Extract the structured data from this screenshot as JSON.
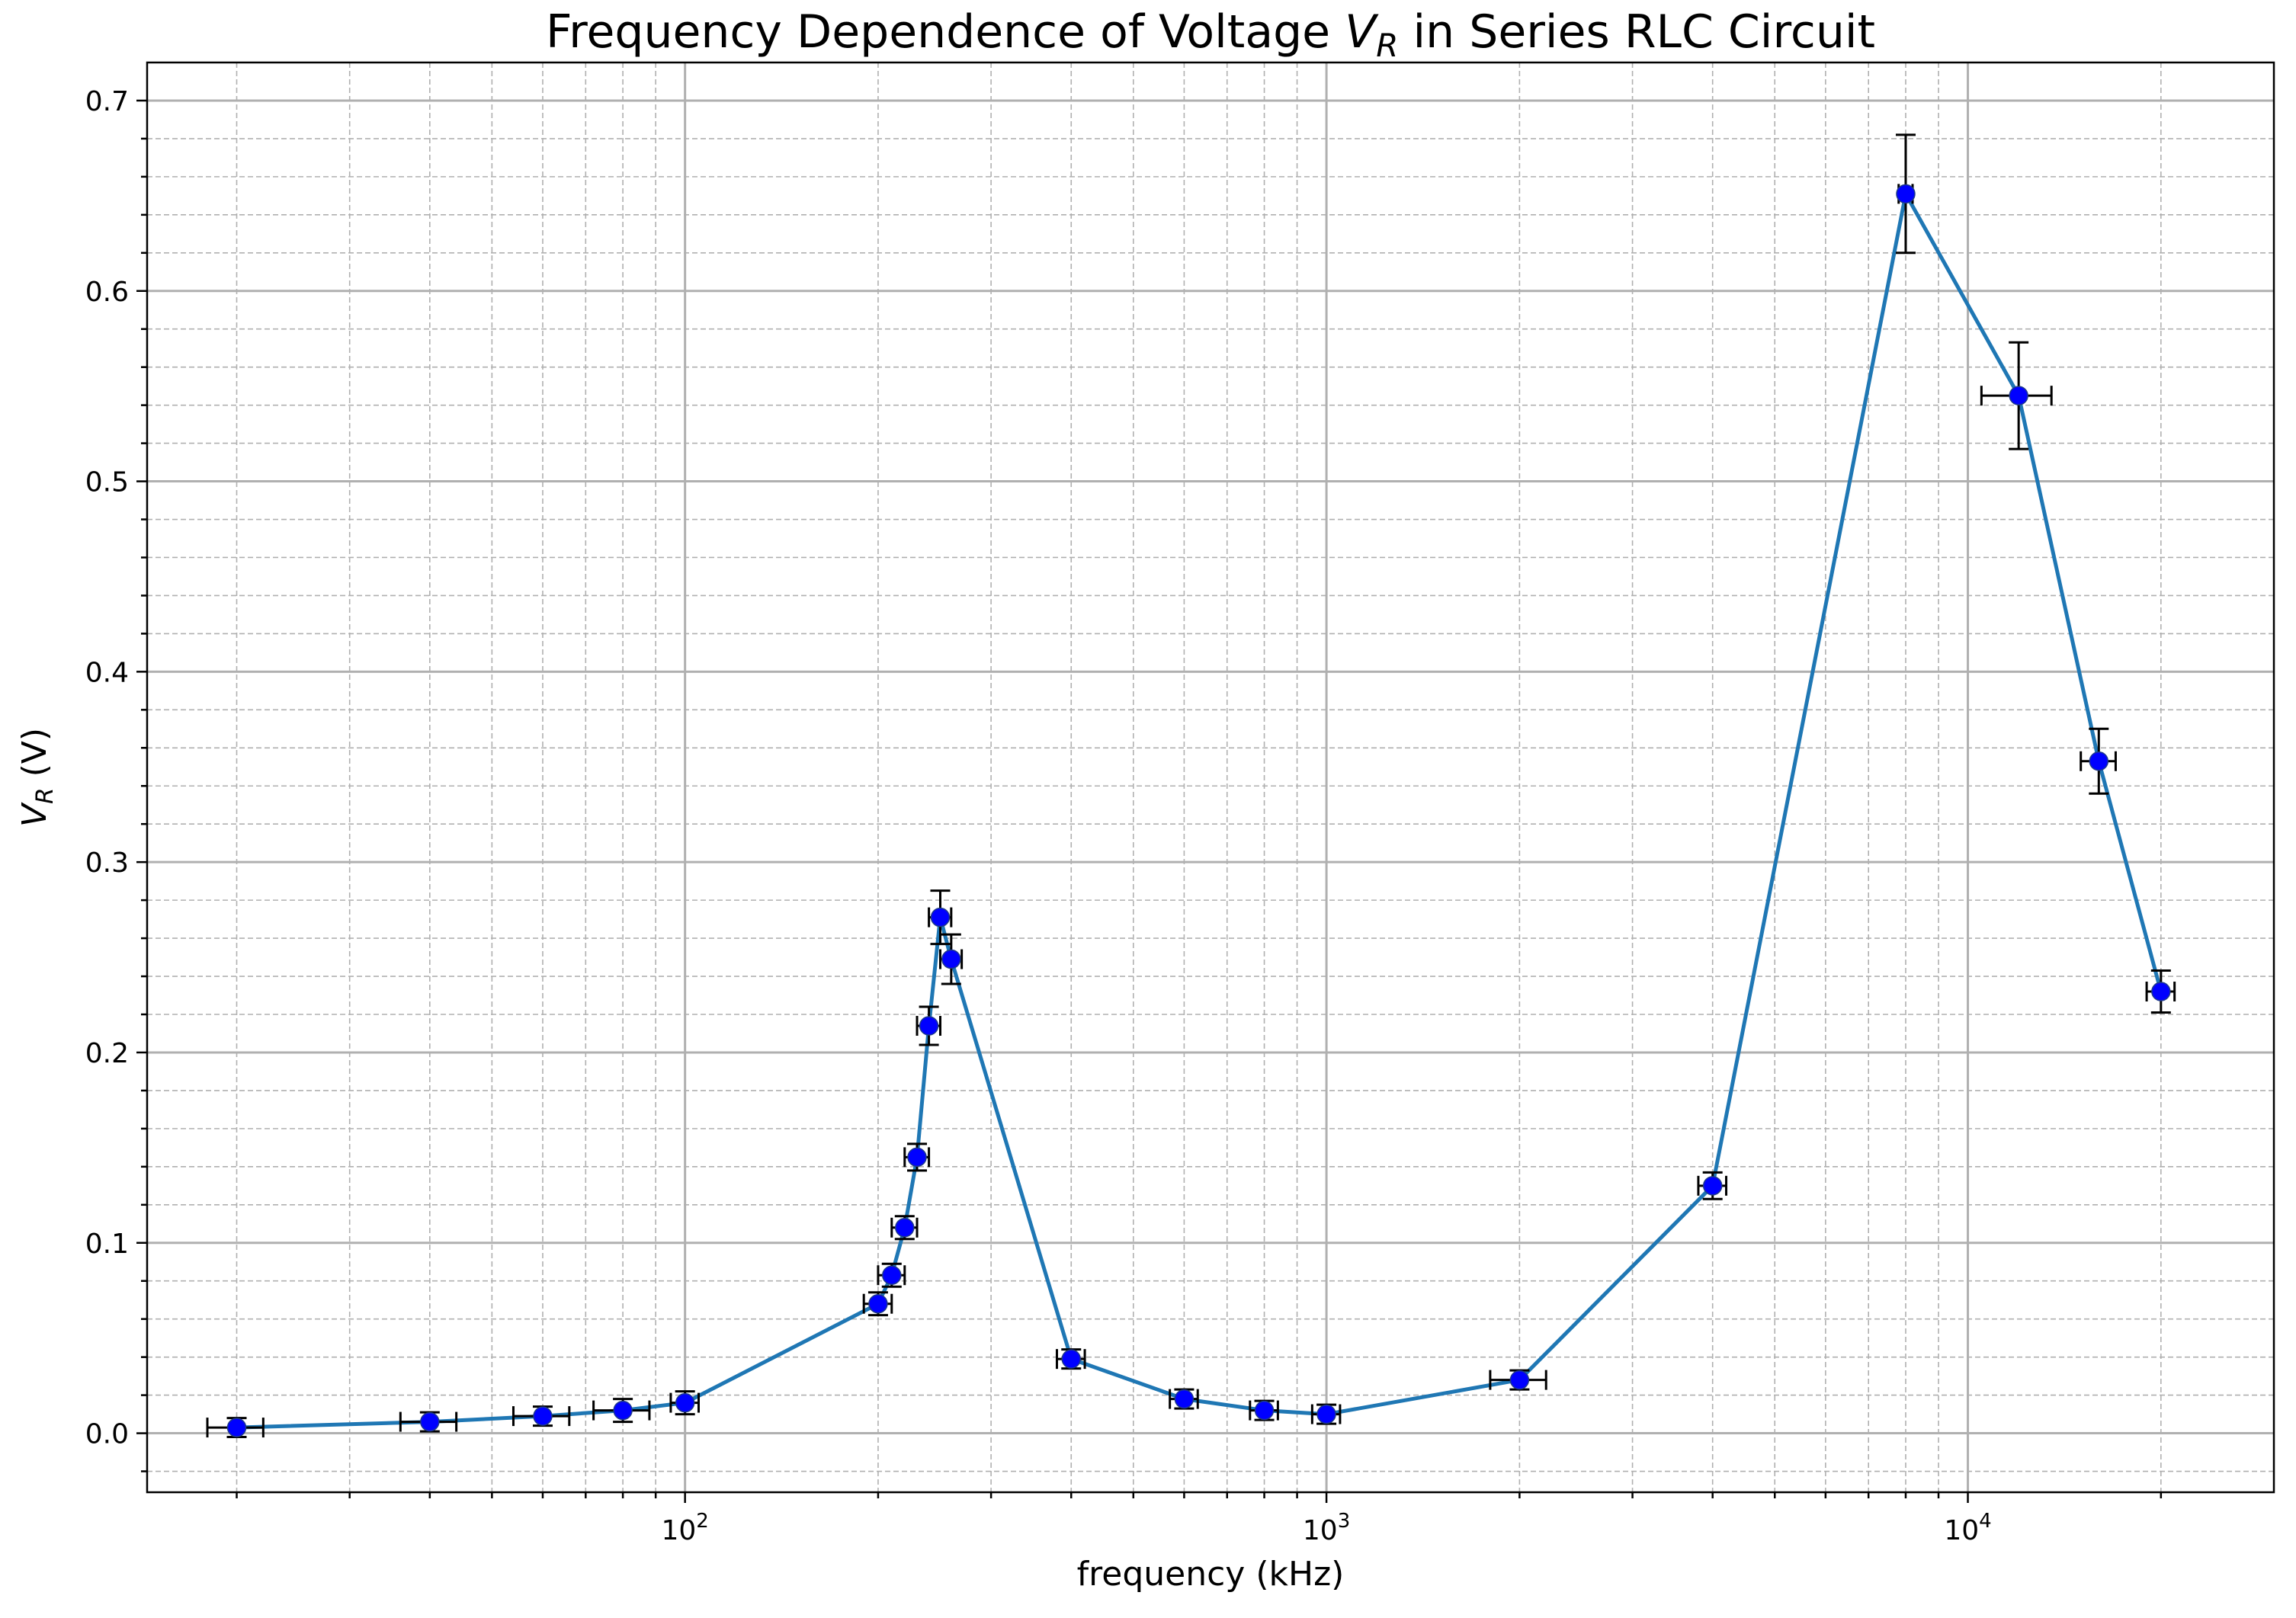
{
  "chart_data": {
    "type": "scatter",
    "title_prefix": "Frequency Dependence of Voltage ",
    "title_symbol": "V",
    "title_subscript": "R",
    "title_suffix": " in Series RLC Circuit",
    "xlabel": "frequency (kHz)",
    "ylabel_symbol": "V",
    "ylabel_subscript": "R",
    "ylabel_unit": " (V)",
    "xscale": "log",
    "xlim": [
      14.5,
      30000
    ],
    "ylim": [
      -0.031,
      0.72
    ],
    "x_ticks": [
      100,
      1000,
      10000
    ],
    "x_tick_labels": [
      {
        "base": "10",
        "exp": "2"
      },
      {
        "base": "10",
        "exp": "3"
      },
      {
        "base": "10",
        "exp": "4"
      }
    ],
    "y_ticks": [
      0.0,
      0.1,
      0.2,
      0.3,
      0.4,
      0.5,
      0.6,
      0.7
    ],
    "y_tick_labels": [
      "0.0",
      "0.1",
      "0.2",
      "0.3",
      "0.4",
      "0.5",
      "0.6",
      "0.7"
    ],
    "grid": "major solid, minor dashed",
    "line_color": "#1f77b4",
    "marker_color": "#0000ff",
    "errorbar_color": "#000000",
    "series": [
      {
        "x": [
          20,
          40,
          60,
          80,
          100,
          200,
          210,
          220,
          230,
          240,
          250,
          260,
          400,
          600,
          800,
          1000,
          2000,
          4000,
          8000,
          12000,
          16000,
          20000
        ],
        "y": [
          0.003,
          0.006,
          0.009,
          0.012,
          0.016,
          0.068,
          0.083,
          0.108,
          0.145,
          0.214,
          0.271,
          0.249,
          0.039,
          0.018,
          0.012,
          0.01,
          0.028,
          0.13,
          0.651,
          0.545,
          0.353,
          0.232
        ],
        "yerr": [
          0.005,
          0.005,
          0.005,
          0.006,
          0.006,
          0.006,
          0.006,
          0.006,
          0.007,
          0.01,
          0.014,
          0.013,
          0.005,
          0.005,
          0.005,
          0.005,
          0.005,
          0.007,
          0.031,
          0.028,
          0.017,
          0.011
        ],
        "xerr": [
          2,
          4,
          6,
          8,
          5,
          10,
          10,
          10,
          10,
          10,
          10,
          10,
          20,
          30,
          40,
          50,
          200,
          200,
          200,
          1500,
          1000,
          1000
        ]
      }
    ]
  }
}
